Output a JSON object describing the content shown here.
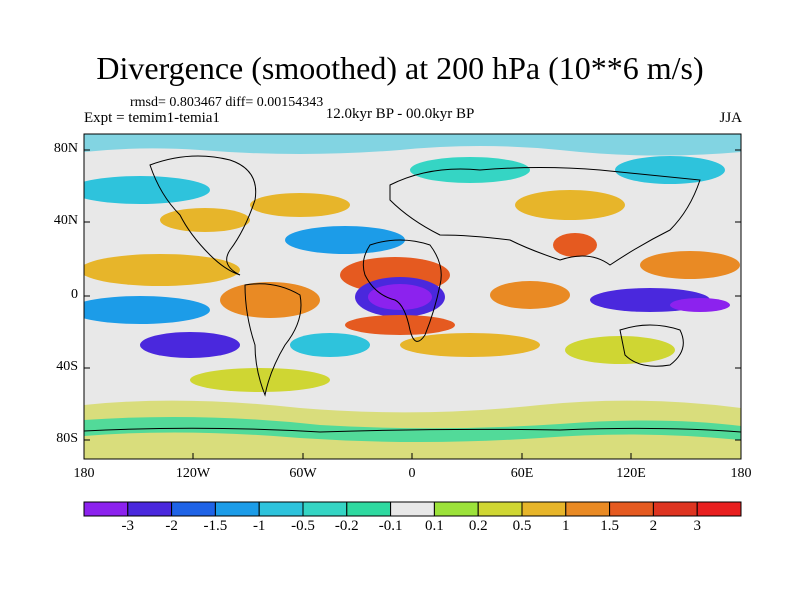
{
  "title": "Divergence (smoothed) at 200 hPa (10**6 m/s)",
  "stats": "rmsd= 0.803467 diff= 0.00154343",
  "experiment": "Expt = temim1-temia1",
  "period": "12.0kyr BP - 00.0kyr BP",
  "season": "JJA",
  "latitude_labels": [
    "80N",
    "40N",
    "0",
    "40S",
    "80S"
  ],
  "longitude_labels": [
    "180",
    "120W",
    "60W",
    "0",
    "60E",
    "120E",
    "180"
  ],
  "colorbar": {
    "labels": [
      "-3",
      "-2",
      "-1.5",
      "-1",
      "-0.5",
      "-0.2",
      "-0.1",
      "0.1",
      "0.2",
      "0.5",
      "1",
      "1.5",
      "2",
      "3"
    ],
    "colors": [
      "#8c22ee",
      "#4a28dd",
      "#1f63e6",
      "#1c9ce8",
      "#2ec3dc",
      "#35d5c4",
      "#2fd9a0",
      "#e8e8e8",
      "#9ce23a",
      "#cfd633",
      "#e7b52a",
      "#e98a24",
      "#e55a20",
      "#de3420",
      "#e81f1f"
    ]
  },
  "colors": {
    "neutral": "#e8e8e8",
    "coastline": "#000000"
  }
}
